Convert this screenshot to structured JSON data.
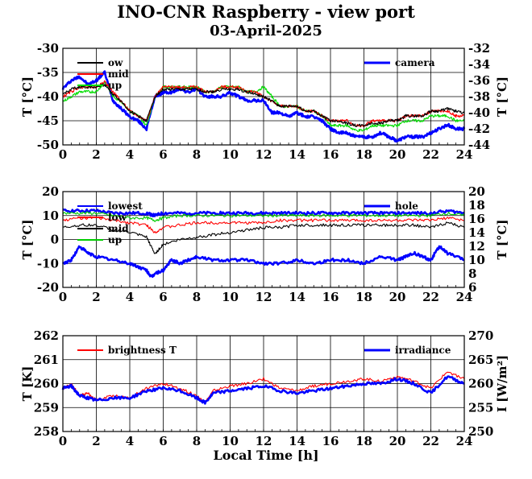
{
  "page": {
    "title": "INO-CNR Raspberry - view port",
    "subtitle": "03-April-2025",
    "xlabel": "Local Time [h]"
  },
  "chart_data": [
    {
      "type": "line",
      "x_ticks": [
        "0",
        "2",
        "4",
        "6",
        "8",
        "10",
        "12",
        "14",
        "16",
        "18",
        "20",
        "22",
        "24"
      ],
      "xlim": [
        0,
        24
      ],
      "ylabel": "T [°C]",
      "ylim": [
        -50,
        -30
      ],
      "yticks": [
        "-30",
        "-35",
        "-40",
        "-45",
        "-50"
      ],
      "y2label": "T [°C]",
      "y2lim": [
        -44,
        -32
      ],
      "y2ticks": [
        "-32",
        "-34",
        "-36",
        "-38",
        "-40",
        "-42",
        "-44"
      ],
      "grid": true,
      "legend_left": [
        "ow",
        "mid",
        "up"
      ],
      "legend_right": [
        "camera"
      ],
      "series": [
        {
          "name": "camera",
          "axis": "right",
          "color": "#0000ff",
          "x": [
            0,
            0.5,
            1,
            1.5,
            2,
            2.5,
            3,
            3.5,
            4,
            4.5,
            5,
            5.5,
            6,
            6.5,
            7,
            7.5,
            8,
            8.5,
            9,
            9.5,
            10,
            10.5,
            11,
            11.5,
            12,
            12.5,
            13,
            13.5,
            14,
            14.5,
            15,
            15.5,
            16,
            16.5,
            17,
            17.5,
            18,
            18.5,
            19,
            19.5,
            20,
            20.5,
            21,
            21.5,
            22,
            22.5,
            23,
            23.5,
            24
          ],
          "y": [
            -37,
            -36,
            -35.5,
            -36.5,
            -36,
            -35,
            -38.5,
            -39.5,
            -40.5,
            -41,
            -42,
            -38,
            -37.5,
            -37.5,
            -37,
            -37.5,
            -37,
            -38,
            -38,
            -38,
            -37.5,
            -38,
            -38.5,
            -38.5,
            -38.5,
            -40,
            -40,
            -40.5,
            -40,
            -40.5,
            -40.5,
            -41,
            -42,
            -42.5,
            -42.5,
            -43,
            -43,
            -43,
            -42.5,
            -43,
            -43.5,
            -43,
            -43,
            -43,
            -42.5,
            -42,
            -41.5,
            -42,
            -42
          ]
        },
        {
          "name": "up",
          "axis": "left",
          "color": "#00dd00",
          "x": [
            0,
            0.5,
            1,
            1.5,
            2,
            2.5,
            3,
            3.5,
            4,
            4.5,
            5,
            5.5,
            6,
            6.5,
            7,
            7.5,
            8,
            8.5,
            9,
            9.5,
            10,
            10.5,
            11,
            11.5,
            12,
            12.5,
            13,
            13.5,
            14,
            14.5,
            15,
            15.5,
            16,
            16.5,
            17,
            17.5,
            18,
            18.5,
            19,
            19.5,
            20,
            20.5,
            21,
            21.5,
            22,
            22.5,
            23,
            23.5,
            24
          ],
          "y": [
            -41,
            -40,
            -39,
            -39,
            -39,
            -37,
            -40,
            -41,
            -43,
            -44,
            -46,
            -40,
            -38,
            -38,
            -38,
            -38,
            -38,
            -39,
            -39,
            -38,
            -38,
            -38,
            -39,
            -39,
            -38,
            -40,
            -42,
            -42,
            -42,
            -43,
            -43,
            -44,
            -46,
            -46,
            -46,
            -47,
            -47,
            -46,
            -46,
            -46,
            -46,
            -45,
            -45,
            -45,
            -44,
            -44,
            -44,
            -45,
            -45
          ]
        },
        {
          "name": "mid",
          "axis": "left",
          "color": "#ff0000",
          "x": [
            0,
            0.5,
            1,
            1.5,
            2,
            2.5,
            3,
            3.5,
            4,
            4.5,
            5,
            5.5,
            6,
            6.5,
            7,
            7.5,
            8,
            8.5,
            9,
            9.5,
            10,
            10.5,
            11,
            11.5,
            12,
            12.5,
            13,
            13.5,
            14,
            14.5,
            15,
            15.5,
            16,
            16.5,
            17,
            17.5,
            18,
            18.5,
            19,
            19.5,
            20,
            20.5,
            21,
            21.5,
            22,
            22.5,
            23,
            23.5,
            24
          ],
          "y": [
            -40,
            -39,
            -38,
            -38,
            -38,
            -37,
            -39,
            -41,
            -43,
            -44,
            -45,
            -40,
            -38,
            -38,
            -38,
            -38,
            -38,
            -39,
            -39,
            -38,
            -38,
            -38,
            -39,
            -39,
            -40,
            -41,
            -42,
            -42,
            -42,
            -43,
            -43,
            -44,
            -45,
            -45,
            -45,
            -46,
            -46,
            -45,
            -45,
            -45,
            -45,
            -44,
            -44,
            -44,
            -43,
            -43,
            -43,
            -44,
            -44
          ]
        },
        {
          "name": "ow",
          "axis": "left",
          "color": "#000000",
          "x": [
            0,
            0.5,
            1,
            1.5,
            2,
            2.5,
            3,
            3.5,
            4,
            4.5,
            5,
            5.5,
            6,
            6.5,
            7,
            7.5,
            8,
            8.5,
            9,
            9.5,
            10,
            10.5,
            11,
            11.5,
            12,
            12.5,
            13,
            13.5,
            14,
            14.5,
            15,
            15.5,
            16,
            16.5,
            17,
            17.5,
            18,
            18.5,
            19,
            19.5,
            20,
            20.5,
            21,
            21.5,
            22,
            22.5,
            23,
            23.5,
            24
          ],
          "y": [
            -39.5,
            -38.5,
            -38,
            -38,
            -38,
            -37.5,
            -39.5,
            -41,
            -43,
            -44,
            -45,
            -40,
            -38.5,
            -38.5,
            -38.5,
            -38.5,
            -38.5,
            -39,
            -39,
            -38.5,
            -38.5,
            -38.5,
            -39,
            -39.5,
            -40,
            -41,
            -42,
            -42,
            -42,
            -43,
            -43,
            -44,
            -45,
            -45,
            -45.5,
            -46,
            -46,
            -45.5,
            -45.5,
            -45,
            -45,
            -44,
            -44,
            -44,
            -43,
            -43,
            -42.5,
            -43,
            -43.5
          ]
        }
      ]
    },
    {
      "type": "line",
      "x_ticks": [
        "0",
        "2",
        "4",
        "6",
        "8",
        "10",
        "12",
        "14",
        "16",
        "18",
        "20",
        "22",
        "24"
      ],
      "xlim": [
        0,
        24
      ],
      "ylabel": "T [°C]",
      "ylim": [
        -20,
        20
      ],
      "yticks": [
        "20",
        "10",
        "0",
        "-10",
        "-20"
      ],
      "y2label": "T [°C]",
      "y2lim": [
        6,
        20
      ],
      "y2ticks": [
        "20",
        "18",
        "16",
        "14",
        "12",
        "10",
        "8",
        "6"
      ],
      "grid": true,
      "legend_left": [
        "lowest",
        "low",
        "mid",
        "up"
      ],
      "legend_right": [
        "hole"
      ],
      "series": [
        {
          "name": "lowest",
          "axis": "left",
          "color": "#0000ff",
          "x": [
            0,
            1,
            2,
            3,
            4,
            5,
            5.5,
            6,
            7,
            8,
            9,
            10,
            11,
            12,
            13,
            14,
            15,
            16,
            17,
            18,
            19,
            20,
            21,
            22,
            23,
            24
          ],
          "y": [
            12,
            12,
            12,
            11,
            11,
            11,
            10,
            11,
            11,
            11,
            11,
            11,
            11,
            11,
            11,
            11,
            11,
            11,
            11,
            11,
            11,
            11,
            11,
            11,
            12,
            11
          ]
        },
        {
          "name": "up",
          "axis": "left",
          "color": "#00cc00",
          "x": [
            0,
            1,
            2,
            3,
            4,
            5,
            5.5,
            6,
            7,
            8,
            9,
            10,
            11,
            12,
            13,
            14,
            15,
            16,
            17,
            18,
            19,
            20,
            21,
            22,
            23,
            24
          ],
          "y": [
            11,
            11,
            11,
            10,
            9,
            9,
            8,
            9,
            10,
            10,
            10,
            10,
            10,
            10,
            10,
            10,
            10,
            10,
            10,
            10,
            10,
            10,
            10,
            10,
            11,
            10
          ]
        },
        {
          "name": "low",
          "axis": "left",
          "color": "#ff0000",
          "x": [
            0,
            1,
            2,
            3,
            4,
            5,
            5.5,
            6,
            7,
            8,
            9,
            10,
            11,
            12,
            13,
            14,
            15,
            16,
            17,
            18,
            19,
            20,
            21,
            22,
            23,
            24
          ],
          "y": [
            8,
            9,
            9,
            8,
            7,
            6,
            3,
            5,
            6,
            7,
            7,
            7,
            7,
            7,
            8,
            8,
            8,
            8,
            8,
            8,
            8,
            8,
            8,
            8,
            9,
            8
          ]
        },
        {
          "name": "mid",
          "axis": "left",
          "color": "#000000",
          "x": [
            0,
            1,
            2,
            3,
            4,
            5,
            5.5,
            6,
            7,
            8,
            9,
            10,
            11,
            12,
            13,
            14,
            15,
            16,
            17,
            18,
            19,
            20,
            21,
            22,
            23,
            24
          ],
          "y": [
            5,
            6,
            6,
            4,
            3,
            1,
            -6,
            -2,
            0,
            1,
            2,
            3,
            4,
            5,
            5,
            6,
            6,
            6,
            6,
            6,
            6,
            6,
            6,
            5,
            7,
            5
          ]
        },
        {
          "name": "hole",
          "axis": "right",
          "color": "#0000ff",
          "x": [
            0,
            0.5,
            1,
            1.5,
            2,
            3,
            4,
            4.5,
            5,
            5.3,
            5.5,
            6,
            6.5,
            7,
            7.5,
            8,
            9,
            10,
            11,
            12,
            13,
            14,
            15,
            16,
            17,
            18,
            19,
            20,
            20.5,
            21,
            21.5,
            22,
            22.5,
            23,
            24
          ],
          "y": [
            9.5,
            10,
            12,
            11,
            10.5,
            10,
            9.5,
            9,
            8.5,
            7.5,
            8,
            8.5,
            10,
            9.5,
            10,
            10.5,
            10,
            10,
            10,
            9.5,
            9.5,
            10,
            9.5,
            10,
            10,
            9.5,
            10.5,
            10,
            10.5,
            11,
            10.5,
            10,
            12,
            11,
            10
          ]
        }
      ]
    },
    {
      "type": "line",
      "x_ticks": [
        "0",
        "2",
        "4",
        "6",
        "8",
        "10",
        "12",
        "14",
        "16",
        "18",
        "20",
        "22",
        "24"
      ],
      "xlim": [
        0,
        24
      ],
      "ylabel": "T [K]",
      "ylim": [
        258,
        262
      ],
      "yticks": [
        "262",
        "261",
        "260",
        "259",
        "258"
      ],
      "y2label": "I [W/m²]",
      "y2lim": [
        250,
        270
      ],
      "y2ticks": [
        "270",
        "265",
        "260",
        "255",
        "250"
      ],
      "grid": true,
      "legend_left": [
        "brightness T"
      ],
      "legend_right": [
        "irradiance"
      ],
      "series": [
        {
          "name": "brightness T",
          "axis": "left",
          "color": "#ff0000",
          "x": [
            0,
            0.5,
            1,
            1.5,
            2,
            3,
            4,
            5,
            6,
            7,
            8,
            8.5,
            9,
            10,
            11,
            12,
            13,
            14,
            15,
            16,
            17,
            18,
            19,
            20,
            21,
            22,
            23,
            24
          ],
          "y": [
            259.8,
            260,
            259.5,
            259.6,
            259.3,
            259.5,
            259.4,
            259.8,
            260,
            259.8,
            259.5,
            259.2,
            259.7,
            259.9,
            260,
            260.2,
            259.8,
            259.7,
            259.9,
            260,
            260.1,
            260.2,
            260.1,
            260.3,
            260.1,
            259.8,
            260.5,
            260.2
          ]
        },
        {
          "name": "irradiance",
          "axis": "right",
          "color": "#0000ff",
          "x": [
            0,
            0.5,
            1,
            1.5,
            2,
            3,
            4,
            5,
            6,
            7,
            8,
            8.5,
            9,
            10,
            11,
            12,
            13,
            14,
            15,
            16,
            17,
            18,
            19,
            20,
            21,
            22,
            23,
            24
          ],
          "y": [
            259,
            259.5,
            257.5,
            257,
            256.5,
            257,
            257,
            258.5,
            259,
            258.5,
            257,
            256,
            258,
            258.5,
            259,
            259.5,
            258.5,
            258,
            258.5,
            259,
            259.5,
            260,
            260,
            261,
            260,
            258,
            261.5,
            260
          ]
        }
      ]
    }
  ]
}
